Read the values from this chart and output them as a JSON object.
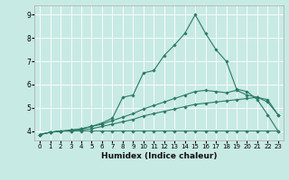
{
  "title": "",
  "xlabel": "Humidex (Indice chaleur)",
  "xlim": [
    -0.5,
    23.5
  ],
  "ylim": [
    3.6,
    9.4
  ],
  "yticks": [
    4,
    5,
    6,
    7,
    8,
    9
  ],
  "xticks": [
    0,
    1,
    2,
    3,
    4,
    5,
    6,
    7,
    8,
    9,
    10,
    11,
    12,
    13,
    14,
    15,
    16,
    17,
    18,
    19,
    20,
    21,
    22,
    23
  ],
  "bg_color": "#c8eae4",
  "line_color": "#2a7a65",
  "grid_color": "#ffffff",
  "lines": [
    [
      3.85,
      3.95,
      4.0,
      4.0,
      4.0,
      4.0,
      4.0,
      4.0,
      4.0,
      4.0,
      4.0,
      4.0,
      4.0,
      4.0,
      4.0,
      4.0,
      4.0,
      4.0,
      4.0,
      4.0,
      4.0,
      4.0,
      4.0,
      4.0
    ],
    [
      3.85,
      3.95,
      4.0,
      4.0,
      4.05,
      4.1,
      4.2,
      4.3,
      4.4,
      4.5,
      4.65,
      4.75,
      4.85,
      4.95,
      5.05,
      5.15,
      5.2,
      5.25,
      5.3,
      5.35,
      5.4,
      5.45,
      5.35,
      4.7
    ],
    [
      3.85,
      3.95,
      4.0,
      4.05,
      4.1,
      4.2,
      4.3,
      4.45,
      4.6,
      4.75,
      4.95,
      5.1,
      5.25,
      5.4,
      5.55,
      5.7,
      5.75,
      5.7,
      5.65,
      5.75,
      5.55,
      5.45,
      5.25,
      4.7
    ],
    [
      3.85,
      3.95,
      4.0,
      4.02,
      4.1,
      4.2,
      4.35,
      4.55,
      5.45,
      5.55,
      6.5,
      6.6,
      7.25,
      7.7,
      8.2,
      9.0,
      8.2,
      7.5,
      7.0,
      5.8,
      5.7,
      5.35,
      4.7,
      4.0
    ]
  ]
}
